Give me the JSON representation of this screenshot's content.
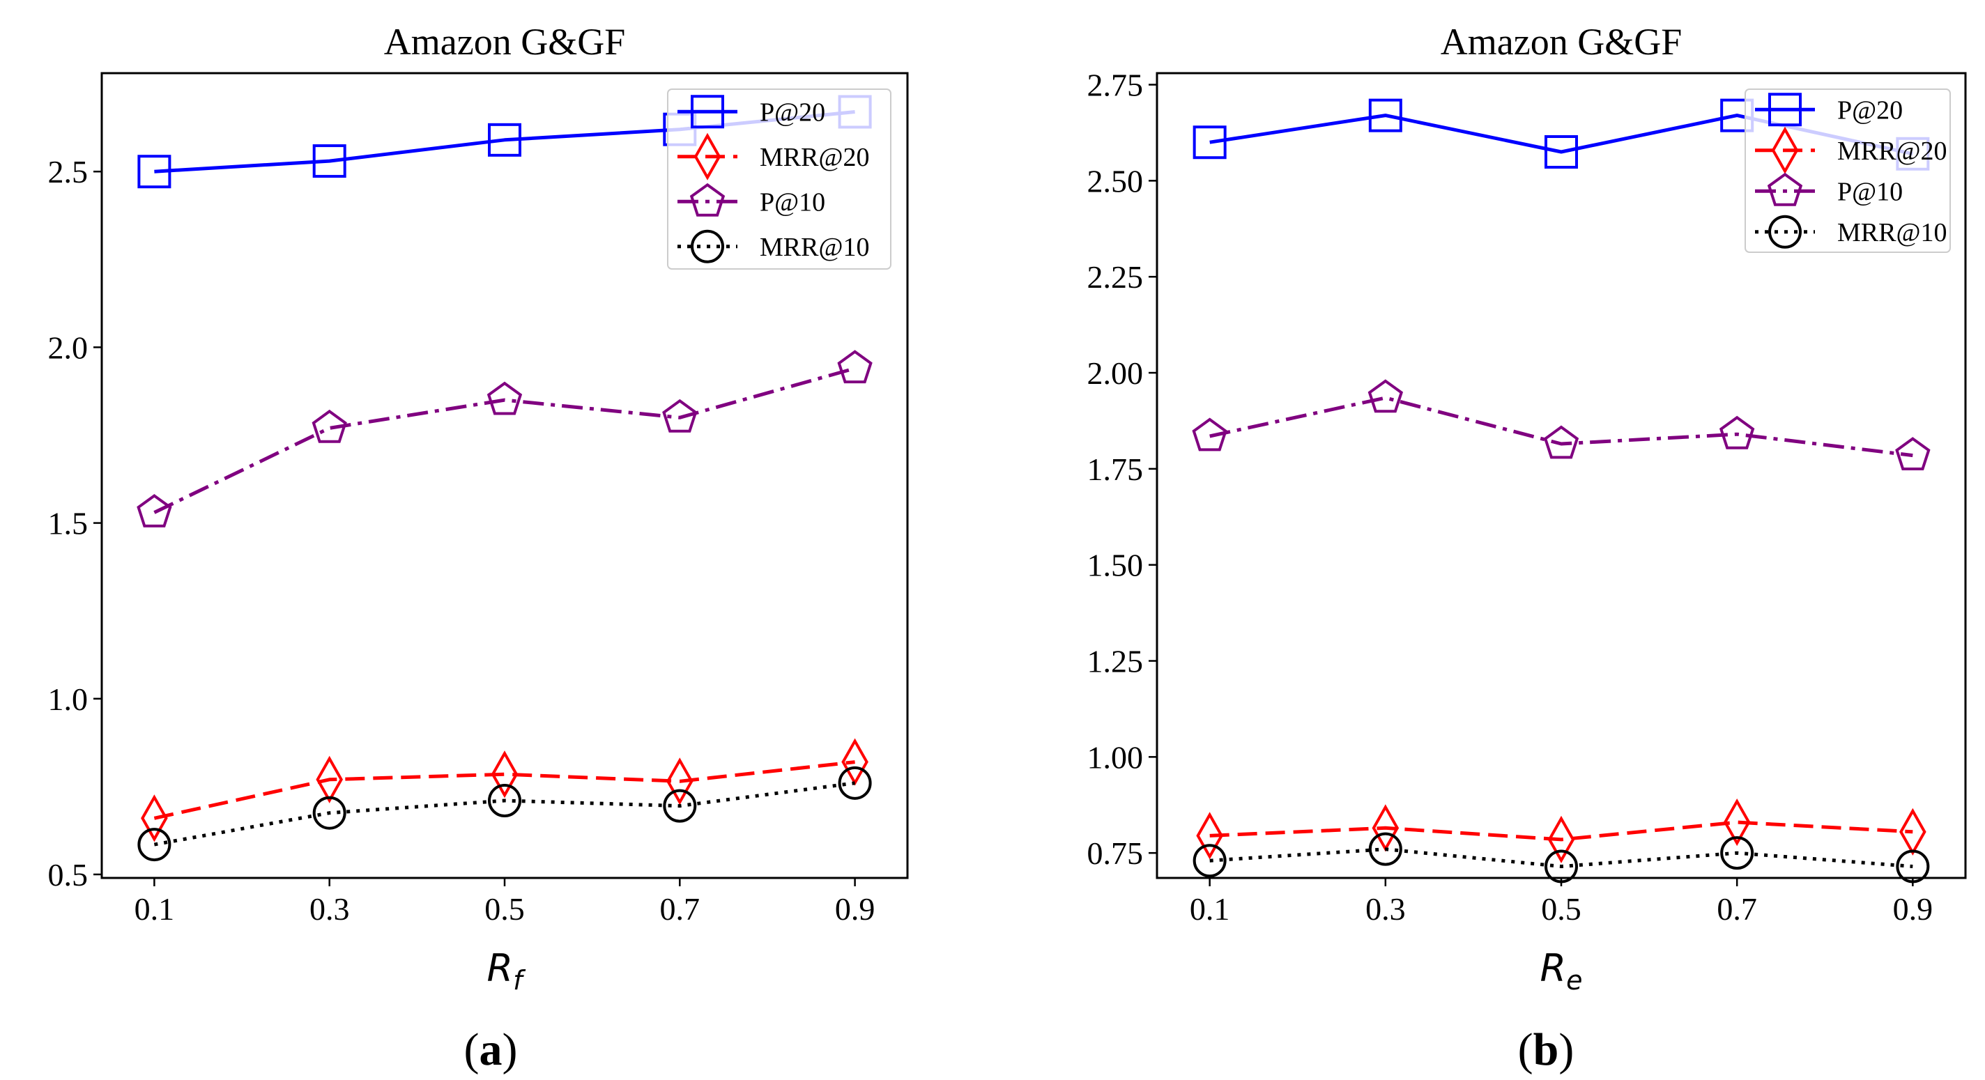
{
  "chart_data": [
    {
      "type": "line",
      "panel_label": "(a)",
      "title": "Amazon G&GF",
      "xlabel_main": "R",
      "xlabel_sub": "f",
      "categories": [
        "0.1",
        "0.3",
        "0.5",
        "0.7",
        "0.9"
      ],
      "x": [
        0.1,
        0.3,
        0.5,
        0.7,
        0.9
      ],
      "xlim": [
        0.04,
        0.96
      ],
      "ylim": [
        0.49,
        2.78
      ],
      "yticks": [
        0.5,
        1.0,
        1.5,
        2.0,
        2.5
      ],
      "ytick_labels": [
        "0.5",
        "1.0",
        "1.5",
        "2.0",
        "2.5"
      ],
      "legend_position": "top-right",
      "series": [
        {
          "name": "P@20",
          "values": [
            2.5,
            2.53,
            2.59,
            2.62,
            2.67
          ],
          "color": "#0000ff",
          "marker": "square",
          "line_style": "solid"
        },
        {
          "name": "MRR@20",
          "values": [
            0.66,
            0.77,
            0.785,
            0.765,
            0.82
          ],
          "color": "#ff0000",
          "marker": "diamond",
          "line_style": "dashed"
        },
        {
          "name": "P@10",
          "values": [
            1.53,
            1.77,
            1.85,
            1.8,
            1.94
          ],
          "color": "#800080",
          "marker": "pentagon",
          "line_style": "dashdot"
        },
        {
          "name": "MRR@10",
          "values": [
            0.585,
            0.675,
            0.71,
            0.695,
            0.76
          ],
          "color": "#000000",
          "marker": "circle",
          "line_style": "dotted"
        }
      ]
    },
    {
      "type": "line",
      "panel_label": "(b)",
      "title": "Amazon G&GF",
      "xlabel_main": "R",
      "xlabel_sub": "e",
      "categories": [
        "0.1",
        "0.3",
        "0.5",
        "0.7",
        "0.9"
      ],
      "x": [
        0.1,
        0.3,
        0.5,
        0.7,
        0.9
      ],
      "xlim": [
        0.04,
        0.96
      ],
      "ylim": [
        0.685,
        2.78
      ],
      "yticks": [
        0.75,
        1.0,
        1.25,
        1.5,
        1.75,
        2.0,
        2.25,
        2.5,
        2.75
      ],
      "ytick_labels": [
        "0.75",
        "1.00",
        "1.25",
        "1.50",
        "1.75",
        "2.00",
        "2.25",
        "2.50",
        "2.75"
      ],
      "legend_position": "top-right",
      "series": [
        {
          "name": "P@20",
          "values": [
            2.6,
            2.67,
            2.575,
            2.67,
            2.57
          ],
          "color": "#0000ff",
          "marker": "square",
          "line_style": "solid"
        },
        {
          "name": "MRR@20",
          "values": [
            0.795,
            0.815,
            0.785,
            0.83,
            0.805
          ],
          "color": "#ff0000",
          "marker": "diamond",
          "line_style": "dashed"
        },
        {
          "name": "P@10",
          "values": [
            1.835,
            1.935,
            1.815,
            1.84,
            1.785
          ],
          "color": "#800080",
          "marker": "pentagon",
          "line_style": "dashdot"
        },
        {
          "name": "MRR@10",
          "values": [
            0.73,
            0.76,
            0.715,
            0.75,
            0.715
          ],
          "color": "#000000",
          "marker": "circle",
          "line_style": "dotted"
        }
      ]
    }
  ]
}
